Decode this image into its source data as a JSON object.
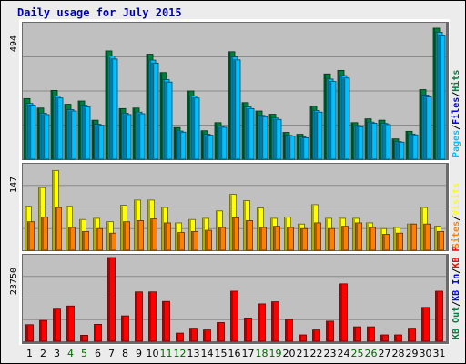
{
  "chart_data": {
    "title": "Daily usage for July 2015",
    "days": [
      "1",
      "2",
      "3",
      "4",
      "5",
      "6",
      "7",
      "8",
      "9",
      "10",
      "11",
      "12",
      "13",
      "14",
      "15",
      "16",
      "17",
      "18",
      "19",
      "20",
      "21",
      "22",
      "23",
      "24",
      "25",
      "26",
      "27",
      "28",
      "29",
      "30",
      "31"
    ],
    "weekend_days": [
      "4",
      "5",
      "11",
      "12",
      "18",
      "19",
      "25",
      "26"
    ],
    "colors": {
      "hits": "#008040",
      "files": "#00c0ff",
      "pages": "#00c0ff",
      "visits": "#ffff00",
      "sites": "#ff8000",
      "kb_out": "#008040",
      "kb_in": "#0000ff",
      "kb_f": "#ff0000",
      "weekday_label": "#000000",
      "weekend_label": "#006400",
      "plot_bg": "#c0c0c0",
      "title": "#0000aa"
    },
    "panels": [
      {
        "type": "bar",
        "ymax_label": "494",
        "ymax": 494,
        "legend": [
          {
            "text": "Hits",
            "color": "#008040"
          },
          {
            "text": "/",
            "color": "#000000"
          },
          {
            "text": "Files",
            "color": "#0000ff"
          },
          {
            "text": "/",
            "color": "#000000"
          },
          {
            "text": "Pages",
            "color": "#00c0ff"
          }
        ],
        "series": [
          {
            "key": "hits",
            "values": [
              224,
              189,
              254,
              203,
              215,
              144,
              400,
              187,
              189,
              388,
              320,
              117,
              252,
              105,
              135,
              397,
              209,
              178,
              166,
              99,
              92,
              196,
              315,
              328,
              135,
              149,
              144,
              75,
              103,
              257,
              484
            ]
          },
          {
            "key": "files",
            "values": [
              206,
              170,
              234,
              183,
              199,
              129,
              381,
              170,
              174,
              366,
              294,
              104,
              234,
              92,
              122,
              378,
              193,
              162,
              152,
              88,
              82,
              180,
              296,
              309,
              124,
              137,
              132,
              65,
              93,
              237,
              469
            ]
          },
          {
            "key": "pages",
            "values": [
              200,
              165,
              226,
              178,
              193,
              125,
              370,
              165,
              168,
              355,
              285,
              100,
              226,
              89,
              118,
              367,
              187,
              157,
              147,
              85,
              79,
              174,
              287,
              300,
              120,
              133,
              128,
              63,
              90,
              230,
              455
            ]
          }
        ]
      },
      {
        "type": "bar",
        "ymax_label": "147",
        "ymax": 147,
        "legend": [
          {
            "text": "Visits",
            "color": "#ffff00"
          },
          {
            "text": "/",
            "color": "#000000"
          },
          {
            "text": "Sites",
            "color": "#ff8000"
          }
        ],
        "series": [
          {
            "key": "visits",
            "values": [
              77,
              110,
              140,
              77,
              54,
              56,
              50,
              79,
              88,
              88,
              75,
              48,
              54,
              56,
              69,
              98,
              87,
              74,
              56,
              58,
              46,
              80,
              56,
              56,
              56,
              48,
              38,
              40,
              46,
              75,
              42
            ]
          },
          {
            "key": "sites",
            "values": [
              50,
              58,
              75,
              40,
              33,
              38,
              30,
              50,
              52,
              55,
              48,
              31,
              33,
              35,
              40,
              57,
              52,
              40,
              42,
              40,
              38,
              48,
              38,
              42,
              48,
              40,
              28,
              30,
              46,
              46,
              33
            ]
          }
        ]
      },
      {
        "type": "bar",
        "ymax_label": "23750",
        "ymax": 23750,
        "legend": [
          {
            "text": "KB F",
            "color": "#ff0000"
          },
          {
            "text": "/",
            "color": "#000000"
          },
          {
            "text": "KB In",
            "color": "#0000ff"
          },
          {
            "text": "/",
            "color": "#000000"
          },
          {
            "text": "KB Out",
            "color": "#008040"
          }
        ],
        "series": [
          {
            "key": "kb_f",
            "values": [
              4700,
              5900,
              9100,
              10000,
              1700,
              4800,
              23750,
              7200,
              14000,
              14000,
              11300,
              2300,
              3700,
              3200,
              5300,
              14200,
              6600,
              10600,
              11200,
              6200,
              1800,
              3200,
              5700,
              16300,
              4100,
              4100,
              1800,
              1800,
              3700,
              9600,
              14200
            ]
          }
        ]
      }
    ]
  }
}
